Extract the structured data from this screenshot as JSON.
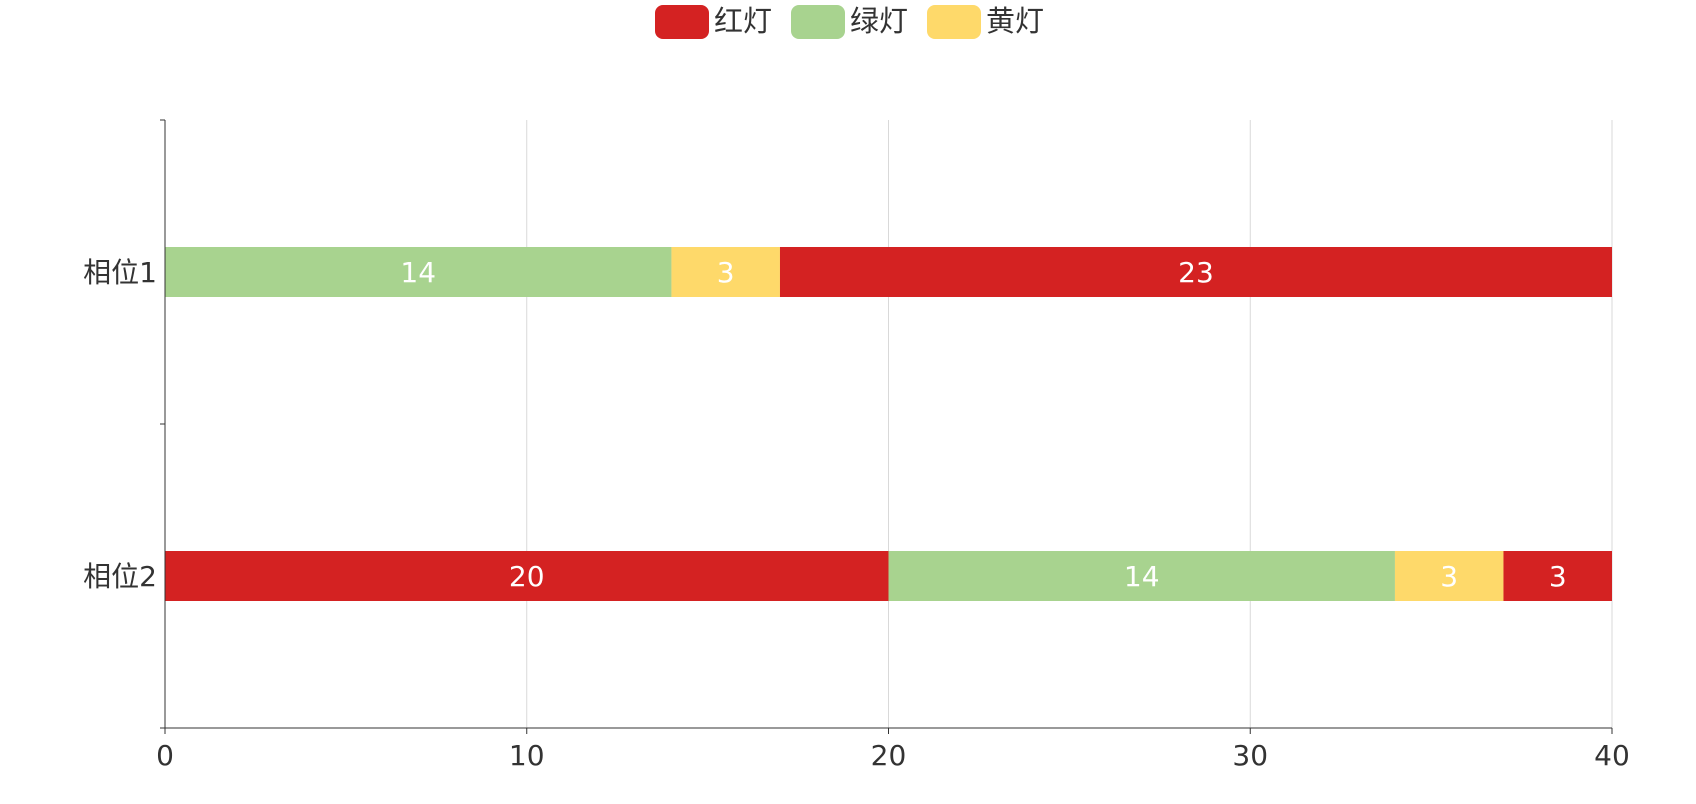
{
  "chart_data": {
    "type": "bar",
    "orientation": "horizontal",
    "stacked": true,
    "categories": [
      "相位1",
      "相位2"
    ],
    "legend": {
      "placement": "top-center",
      "items": [
        {
          "name": "红灯",
          "color": "#d42222"
        },
        {
          "name": "绿灯",
          "color": "#a8d38f"
        },
        {
          "name": "黄灯",
          "color": "#fed96a"
        }
      ]
    },
    "stacks": [
      {
        "category": "相位1",
        "segments": [
          {
            "series": "绿灯",
            "value": 14,
            "color": "#a8d38f"
          },
          {
            "series": "黄灯",
            "value": 3,
            "color": "#fed96a"
          },
          {
            "series": "红灯",
            "value": 23,
            "color": "#d42222"
          }
        ]
      },
      {
        "category": "相位2",
        "segments": [
          {
            "series": "红灯",
            "value": 20,
            "color": "#d42222"
          },
          {
            "series": "绿灯",
            "value": 14,
            "color": "#a8d38f"
          },
          {
            "series": "黄灯",
            "value": 3,
            "color": "#fed96a"
          },
          {
            "series": "红灯",
            "value": 3,
            "color": "#d42222"
          }
        ]
      }
    ],
    "x_ticks": [
      "0",
      "10",
      "20",
      "30",
      "40"
    ],
    "xlim": [
      0,
      40
    ],
    "grid": "vertical",
    "data_labels": true,
    "title": "",
    "xlabel": "",
    "ylabel": ""
  }
}
